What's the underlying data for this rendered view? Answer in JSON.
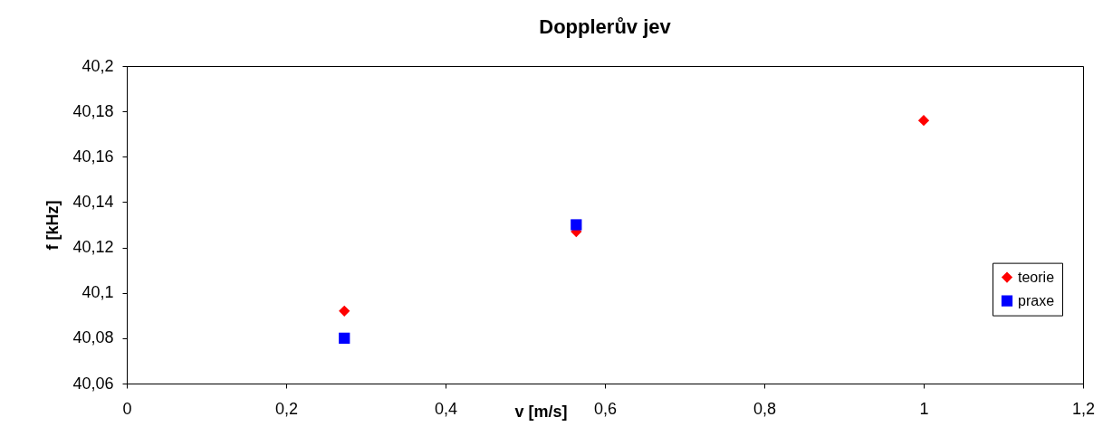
{
  "chart_data": {
    "type": "scatter",
    "title": "Dopplerův jev",
    "xlabel": "v [m/s]",
    "ylabel": "f [kHz]",
    "x": [
      0.273,
      0.564,
      1.0
    ],
    "series": [
      {
        "name": "teorie",
        "color": "#ff0000",
        "marker": "diamond",
        "values": [
          40.092,
          40.127,
          40.176
        ]
      },
      {
        "name": "praxe",
        "color": "#0000ff",
        "marker": "square",
        "values": [
          40.08,
          40.13,
          null
        ]
      }
    ],
    "xlim": [
      0,
      1.2
    ],
    "xticks": [
      0,
      {
        "value": 0.2,
        "label": "0,2"
      },
      {
        "value": 0.4,
        "label": "0,4"
      },
      {
        "value": 0.6,
        "label": "0,6"
      },
      {
        "value": 0.8,
        "label": "0,8"
      },
      1,
      {
        "value": 1.2,
        "label": "1,2"
      }
    ],
    "ylim": [
      40.06,
      40.2
    ],
    "yticks": [
      {
        "value": 40.06,
        "label": "40,06"
      },
      {
        "value": 40.08,
        "label": "40,08"
      },
      {
        "value": 40.1,
        "label": "40,1"
      },
      {
        "value": 40.12,
        "label": "40,12"
      },
      {
        "value": 40.14,
        "label": "40,14"
      },
      {
        "value": 40.16,
        "label": "40,16"
      },
      {
        "value": 40.18,
        "label": "40,18"
      },
      {
        "value": 40.2,
        "label": "40,2"
      }
    ],
    "grid": false,
    "legend": "right"
  }
}
